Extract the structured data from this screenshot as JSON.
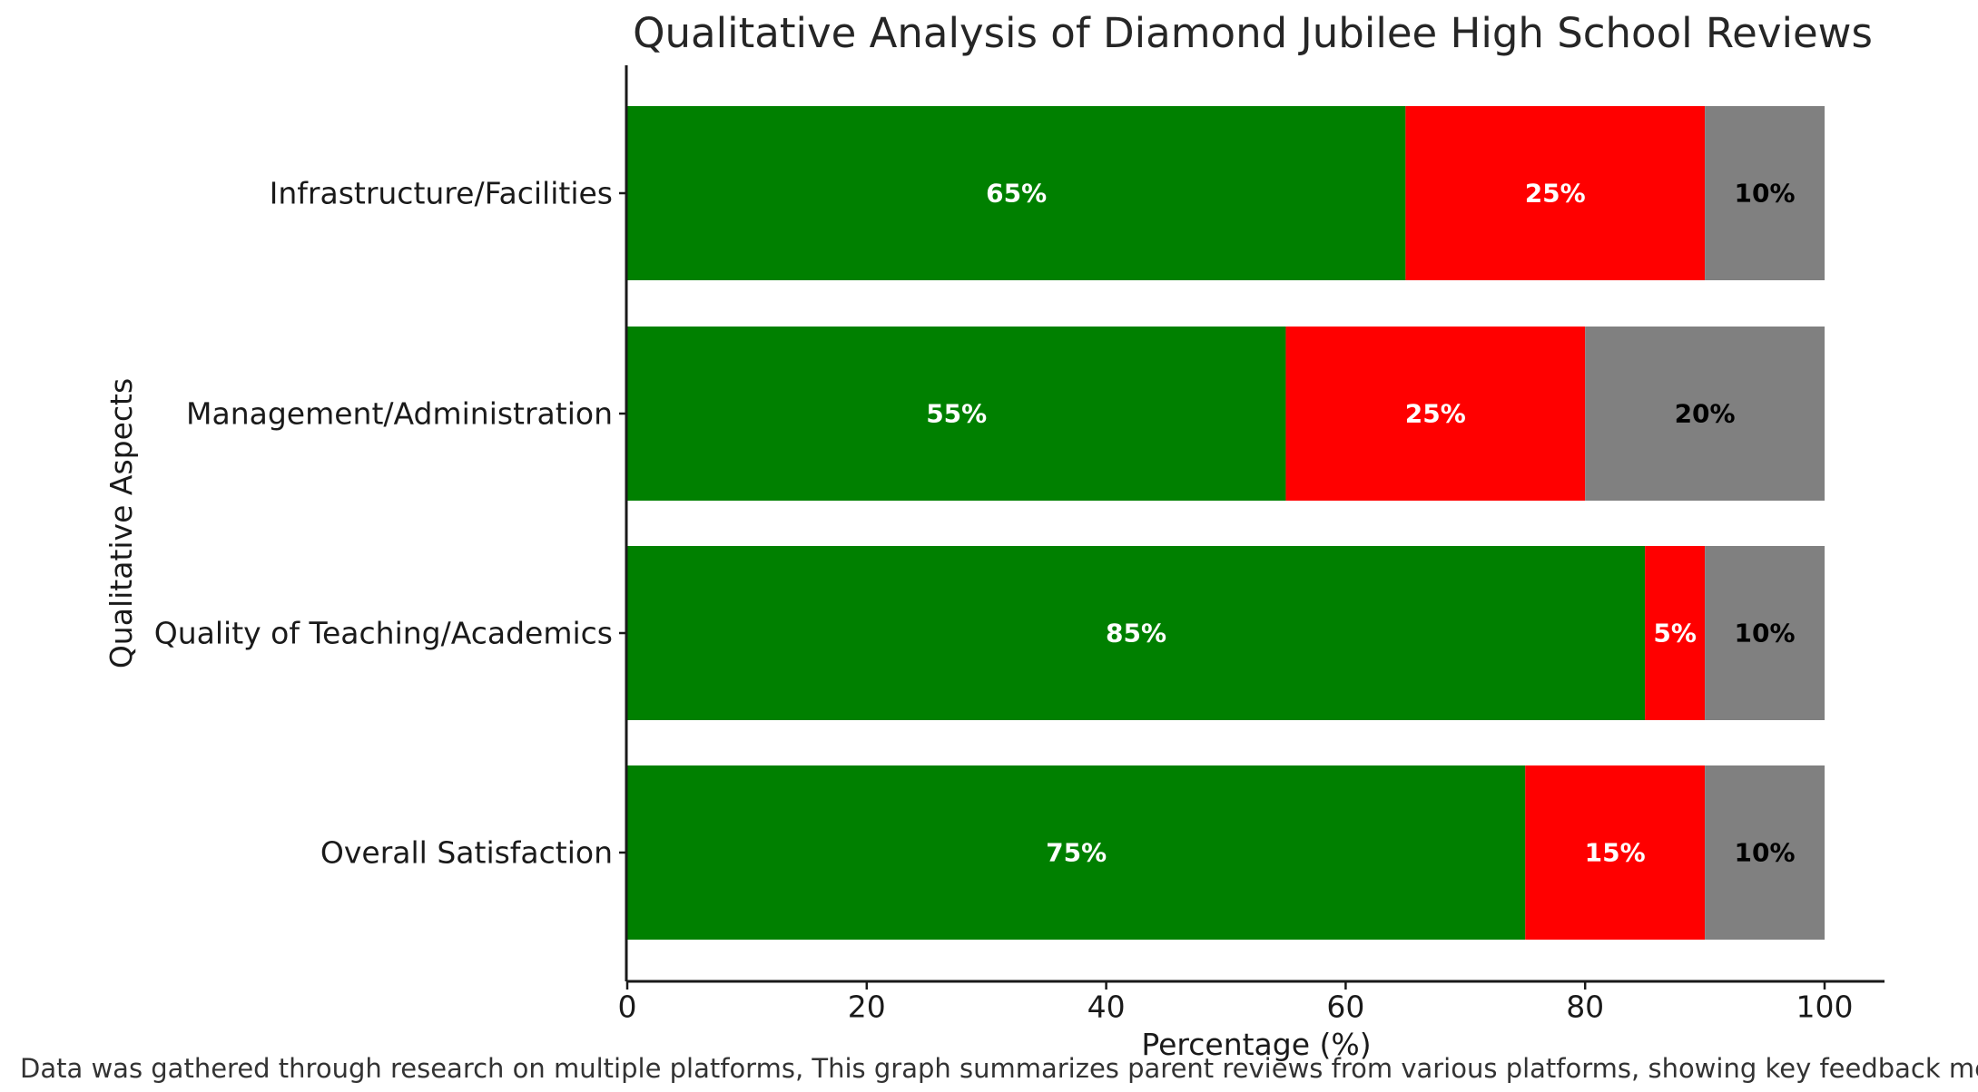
{
  "footnote": "Data was gathered through research on multiple platforms, This graph summarizes parent reviews from various platforms, showing key feedback metrics",
  "chart_data": {
    "type": "bar",
    "orientation": "horizontal",
    "stacked": true,
    "title": "Qualitative Analysis of Diamond Jubilee High School Reviews",
    "xlabel": "Percentage (%)",
    "ylabel": "Qualitative Aspects",
    "xlim": [
      0,
      105
    ],
    "xticks": [
      "0",
      "20",
      "40",
      "60",
      "80",
      "100"
    ],
    "grid": false,
    "legend": "none",
    "categories": [
      "Overall Satisfaction",
      "Quality of Teaching/Academics",
      "Management/Administration",
      "Infrastructure/Facilities"
    ],
    "series": [
      {
        "color": "#008000",
        "label_color": "#ffffff",
        "values": [
          75,
          85,
          55,
          65
        ],
        "labels": [
          "75%",
          "85%",
          "55%",
          "65%"
        ]
      },
      {
        "color": "#ff0000",
        "label_color": "#ffffff",
        "values": [
          15,
          5,
          25,
          25
        ],
        "labels": [
          "15%",
          "5%",
          "25%",
          "25%"
        ]
      },
      {
        "color": "#808080",
        "label_color": "#000000",
        "values": [
          10,
          10,
          20,
          10
        ],
        "labels": [
          "10%",
          "10%",
          "20%",
          "10%"
        ]
      }
    ]
  }
}
